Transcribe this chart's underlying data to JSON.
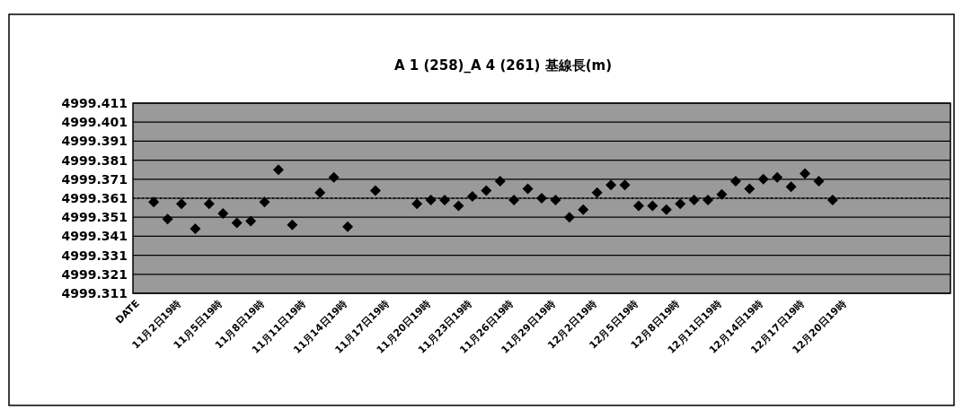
{
  "chart_data": {
    "type": "scatter",
    "title": "A 1 (258)_A 4 (261) 基線長(m)",
    "categories": [
      "DATE",
      null,
      null,
      "11月2日19時",
      null,
      null,
      "11月5日19時",
      null,
      null,
      "11月8日19時",
      null,
      null,
      "11月11日19時",
      null,
      null,
      "11月14日19時",
      null,
      null,
      "11月17日19時",
      null,
      null,
      "11月20日19時",
      null,
      null,
      "11月23日19時",
      null,
      null,
      "11月26日19時",
      null,
      null,
      "11月29日19時",
      null,
      null,
      "12月2日19時",
      null,
      null,
      "12月5日19時",
      null,
      null,
      "12月8日19時",
      null,
      null,
      "12月11日19時",
      null,
      null,
      "12月14日19時",
      null,
      null,
      "12月17日19時",
      null,
      null,
      "12月20日19時",
      null,
      null,
      null,
      null,
      null,
      null,
      null
    ],
    "series": [
      {
        "color": "#000000",
        "values": [
          null,
          4999.359,
          4999.35,
          4999.358,
          4999.345,
          4999.358,
          4999.353,
          4999.348,
          4999.349,
          4999.359,
          4999.376,
          4999.347,
          null,
          4999.364,
          4999.372,
          4999.346,
          null,
          4999.365,
          null,
          null,
          4999.358,
          4999.36,
          4999.36,
          4999.357,
          4999.362,
          4999.365,
          4999.37,
          4999.36,
          4999.366,
          4999.361,
          4999.36,
          4999.351,
          4999.355,
          4999.364,
          4999.368,
          4999.368,
          4999.357,
          4999.357,
          4999.355,
          4999.358,
          4999.36,
          4999.36,
          4999.363,
          4999.37,
          4999.366,
          4999.371,
          4999.372,
          4999.367,
          4999.374,
          4999.37,
          4999.36,
          null,
          null,
          null,
          null,
          null,
          null,
          null,
          null
        ]
      }
    ],
    "ylim": [
      4999.311,
      4999.411
    ],
    "yticks": [
      4999.311,
      4999.321,
      4999.331,
      4999.341,
      4999.351,
      4999.361,
      4999.371,
      4999.381,
      4999.391,
      4999.401,
      4999.411
    ],
    "ref_lines": [
      {
        "axis": "y",
        "value": 4999.361,
        "line_style": "dotted",
        "color": "#000000"
      }
    ],
    "grid": "y",
    "marker": "diamond"
  }
}
